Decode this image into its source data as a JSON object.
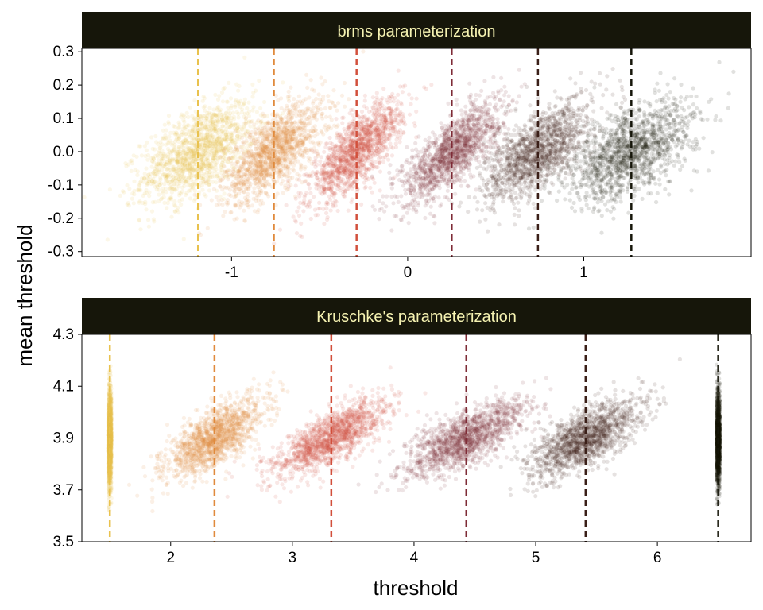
{
  "figure": {
    "ylabel": "mean threshold",
    "xlabel": "threshold"
  },
  "colors": {
    "strip_bg": "#16160a",
    "strip_text": "#f6f3b2",
    "clusters": [
      "#e9c24e",
      "#e08a3c",
      "#d24f3b",
      "#7e2b36",
      "#3a1f18",
      "#16160a"
    ]
  },
  "chart_data": [
    {
      "type": "scatter",
      "title": "brms parameterization",
      "xlim": [
        -1.85,
        1.95
      ],
      "ylim": [
        -0.315,
        0.31
      ],
      "xticks": [
        -1,
        0,
        1
      ],
      "xtick_labels": [
        "-1",
        "0",
        "1"
      ],
      "yticks": [
        -0.3,
        -0.2,
        -0.1,
        0.0,
        0.1,
        0.2,
        0.3
      ],
      "ytick_labels": [
        "-0.3",
        "-0.2",
        "-0.1",
        "0.0",
        "0.1",
        "0.2",
        "0.3"
      ],
      "grid": false,
      "legend": "none",
      "thresholds": [
        -1.19,
        -0.76,
        -0.29,
        0.25,
        0.74,
        1.27
      ],
      "clusters": [
        {
          "x_mean": -1.19,
          "y_mean": 0.0,
          "x_sd": 0.16,
          "y_sd": 0.075,
          "corr": 0.55
        },
        {
          "x_mean": -0.76,
          "y_mean": 0.0,
          "x_sd": 0.14,
          "y_sd": 0.075,
          "corr": 0.65
        },
        {
          "x_mean": -0.29,
          "y_mean": 0.0,
          "x_sd": 0.13,
          "y_sd": 0.075,
          "corr": 0.75
        },
        {
          "x_mean": 0.25,
          "y_mean": 0.0,
          "x_sd": 0.14,
          "y_sd": 0.075,
          "corr": 0.75
        },
        {
          "x_mean": 0.74,
          "y_mean": 0.0,
          "x_sd": 0.15,
          "y_sd": 0.075,
          "corr": 0.65
        },
        {
          "x_mean": 1.27,
          "y_mean": 0.0,
          "x_sd": 0.18,
          "y_sd": 0.075,
          "corr": 0.55
        }
      ]
    },
    {
      "type": "scatter",
      "title": "Kruschke's parameterization",
      "xlim": [
        1.27,
        6.77
      ],
      "ylim": [
        3.5,
        4.3
      ],
      "xticks": [
        2,
        3,
        4,
        5,
        6
      ],
      "xtick_labels": [
        "2",
        "3",
        "4",
        "5",
        "6"
      ],
      "yticks": [
        3.5,
        3.7,
        3.9,
        4.1,
        4.3
      ],
      "ytick_labels": [
        "3.5",
        "3.7",
        "3.9",
        "4.1",
        "4.3"
      ],
      "grid": false,
      "legend": "none",
      "thresholds": [
        1.5,
        2.36,
        3.32,
        4.43,
        5.41,
        6.5
      ],
      "clusters": [
        {
          "x_mean": 1.5,
          "y_mean": 3.9,
          "x_sd": 0.0,
          "y_sd": 0.09,
          "corr": 0.0
        },
        {
          "x_mean": 2.36,
          "y_mean": 3.9,
          "x_sd": 0.2,
          "y_sd": 0.075,
          "corr": 0.7
        },
        {
          "x_mean": 3.32,
          "y_mean": 3.9,
          "x_sd": 0.23,
          "y_sd": 0.075,
          "corr": 0.75
        },
        {
          "x_mean": 4.43,
          "y_mean": 3.9,
          "x_sd": 0.25,
          "y_sd": 0.075,
          "corr": 0.75
        },
        {
          "x_mean": 5.41,
          "y_mean": 3.9,
          "x_sd": 0.23,
          "y_sd": 0.075,
          "corr": 0.7
        },
        {
          "x_mean": 6.5,
          "y_mean": 3.9,
          "x_sd": 0.0,
          "y_sd": 0.09,
          "corr": 0.0
        }
      ]
    }
  ]
}
